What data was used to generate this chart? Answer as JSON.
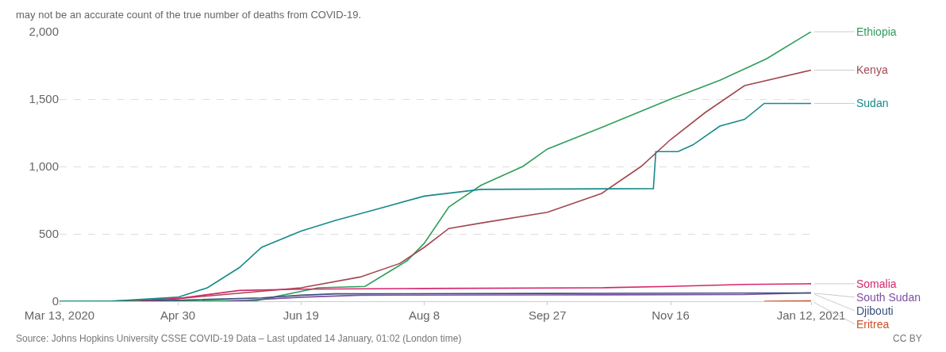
{
  "chart_data": {
    "type": "line",
    "subtitle": "may not be an accurate count of the true number of deaths from COVID-19.",
    "annotations": [
      "Source: Johns Hopkins University CSSE COVID-19 Data – Last updated 14 January, 01:02 (London time)",
      "CC BY"
    ],
    "xlim": [
      "2020-03-13",
      "2021-01-12"
    ],
    "xticks": [
      {
        "value": "2020-03-13",
        "label": "Mar 13, 2020"
      },
      {
        "value": "2020-04-30",
        "label": "Apr 30"
      },
      {
        "value": "2020-06-19",
        "label": "Jun 19"
      },
      {
        "value": "2020-08-08",
        "label": "Aug 8"
      },
      {
        "value": "2020-09-27",
        "label": "Sep 27"
      },
      {
        "value": "2020-11-16",
        "label": "Nov 16"
      },
      {
        "value": "2021-01-12",
        "label": "Jan 12, 2021"
      }
    ],
    "ylim": [
      0,
      2000
    ],
    "yticks": [
      0,
      500,
      {
        "value": 1000,
        "label": "1,000"
      },
      {
        "value": 1500,
        "label": "1,500"
      },
      {
        "value": 2000,
        "label": "2,000"
      }
    ],
    "grid": "y",
    "legend": false,
    "marker": "none",
    "line_style": "solid",
    "series": [
      {
        "name": "Ethiopia",
        "color": "#2e9e5b",
        "x": [
          "2020-03-13",
          "2020-06-01",
          "2020-06-26",
          "2020-07-15",
          "2020-08-01",
          "2020-08-08",
          "2020-08-18",
          "2020-08-31",
          "2020-09-17",
          "2020-09-27",
          "2020-10-19",
          "2020-11-16",
          "2020-12-06",
          "2020-12-25",
          "2021-01-12"
        ],
        "values": [
          0,
          5,
          100,
          110,
          300,
          430,
          700,
          860,
          1000,
          1130,
          1290,
          1500,
          1640,
          1800,
          2000
        ]
      },
      {
        "name": "Kenya",
        "color": "#a2484e",
        "x": [
          "2020-04-02",
          "2020-04-30",
          "2020-06-19",
          "2020-07-13",
          "2020-07-29",
          "2020-08-08",
          "2020-08-18",
          "2020-08-31",
          "2020-09-27",
          "2020-10-19",
          "2020-11-04",
          "2020-11-16",
          "2020-11-30",
          "2020-12-16",
          "2021-01-12"
        ],
        "values": [
          0,
          20,
          100,
          180,
          280,
          400,
          540,
          580,
          660,
          800,
          1000,
          1200,
          1400,
          1600,
          1715
        ]
      },
      {
        "name": "Sudan",
        "color": "#178a8a",
        "x": [
          "2020-03-13",
          "2020-04-02",
          "2020-04-30",
          "2020-05-12",
          "2020-05-25",
          "2020-06-03",
          "2020-06-19",
          "2020-07-03",
          "2020-07-19",
          "2020-08-08",
          "2020-08-31",
          "2020-11-09",
          "2020-11-10",
          "2020-11-19",
          "2020-11-25",
          "2020-12-06",
          "2020-12-16",
          "2020-12-24",
          "2021-01-12"
        ],
        "values": [
          0,
          0,
          30,
          100,
          250,
          400,
          520,
          600,
          680,
          780,
          830,
          836,
          1110,
          1110,
          1160,
          1300,
          1350,
          1468,
          1468
        ]
      },
      {
        "name": "Somalia",
        "color": "#d7266b",
        "x": [
          "2020-04-15",
          "2020-04-30",
          "2020-05-25",
          "2020-06-19",
          "2020-08-08",
          "2020-10-19",
          "2020-11-16",
          "2020-12-16",
          "2021-01-12"
        ],
        "values": [
          0,
          20,
          80,
          90,
          95,
          100,
          110,
          125,
          130
        ]
      },
      {
        "name": "South Sudan",
        "color": "#7e4fa3",
        "x": [
          "2020-05-20",
          "2020-06-19",
          "2020-07-13",
          "2020-09-27",
          "2020-12-16",
          "2021-01-12"
        ],
        "values": [
          0,
          30,
          45,
          47,
          50,
          62
        ]
      },
      {
        "name": "Djibouti",
        "color": "#3a4f7a",
        "x": [
          "2020-04-15",
          "2020-06-03",
          "2020-06-19",
          "2020-07-03",
          "2020-09-27",
          "2021-01-12"
        ],
        "values": [
          0,
          25,
          45,
          55,
          58,
          62
        ]
      },
      {
        "name": "Eritrea",
        "color": "#c9532b",
        "x": [
          "2020-12-24",
          "2021-01-12"
        ],
        "values": [
          0,
          3
        ]
      }
    ]
  }
}
